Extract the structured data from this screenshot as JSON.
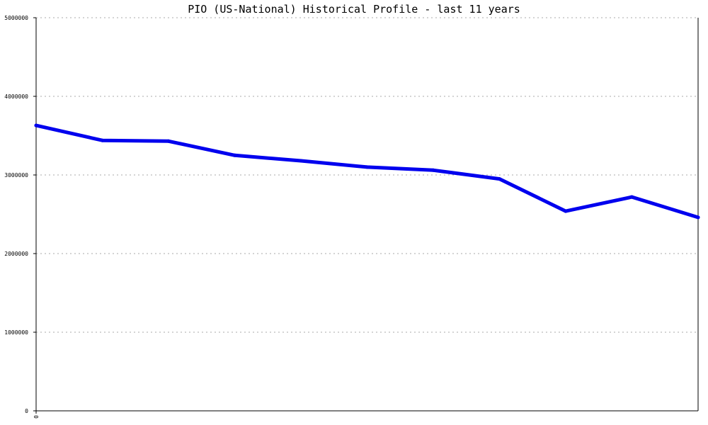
{
  "chart_data": {
    "type": "line",
    "title": "PIO (US-National) Historical Profile - last 11 years",
    "xlabel": "",
    "ylabel": "",
    "ylim": [
      0,
      5000000
    ],
    "yticks": [
      0,
      1000000,
      2000000,
      3000000,
      4000000,
      5000000
    ],
    "ytick_labels": [
      "0",
      "1000000",
      "2000000",
      "3000000",
      "4000000",
      "5000000"
    ],
    "xtick_labels": [
      "0"
    ],
    "grid": true,
    "colors": {
      "line": "#0000ee",
      "grid": "#aaaaaa",
      "axis": "#000000"
    },
    "series": [
      {
        "values": [
          3630000,
          3440000,
          3430000,
          3250000,
          3180000,
          3100000,
          3060000,
          2950000,
          2540000,
          2720000,
          2460000
        ]
      }
    ]
  }
}
